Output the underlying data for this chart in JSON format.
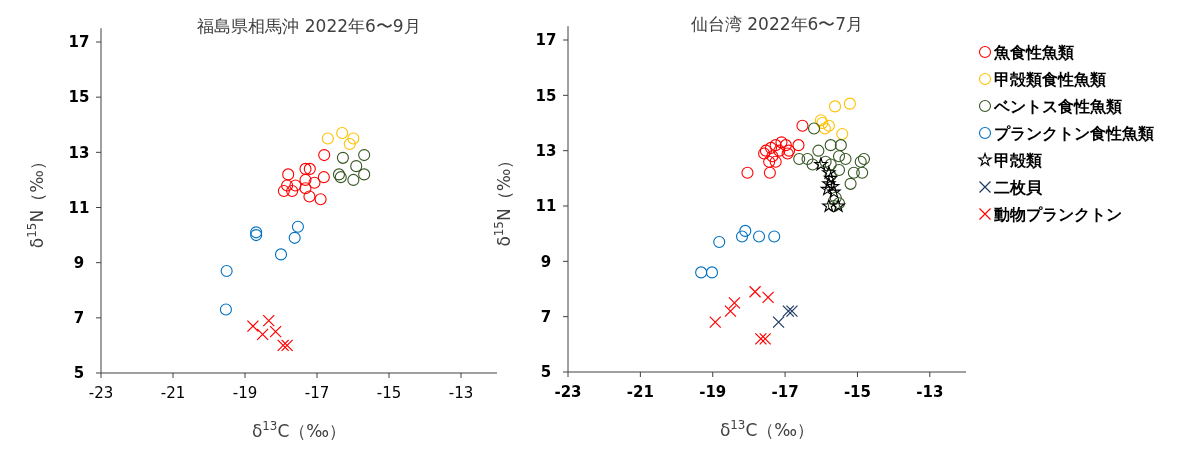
{
  "chart_data": [
    {
      "type": "scatter",
      "title": "福島県相馬沖 2022年6〜9月",
      "xlabel": "δ$^{13}$C（‰）",
      "ylabel": "δ$^{15}$N（‰）",
      "xlim": [
        -23,
        -12
      ],
      "xticks": [
        -23,
        -21,
        -19,
        -17,
        -15,
        -13
      ],
      "ylim": [
        5,
        17.5
      ],
      "yticks": [
        5,
        7,
        9,
        11,
        13,
        15,
        17
      ],
      "grid": false,
      "legend": false,
      "series": [
        {
          "color": "#ff0000",
          "marker": "circle",
          "x": [
            -16.8,
            -17.8,
            -17.32,
            -17.2,
            -17.83,
            -17.6,
            -17.32,
            -17.07,
            -16.81,
            -17.92,
            -17.69,
            -17.32,
            -17.21,
            -16.9
          ],
          "values": [
            12.9,
            12.2,
            12.4,
            12.4,
            11.8,
            11.8,
            12.0,
            11.9,
            12.1,
            11.6,
            11.6,
            11.7,
            11.4,
            11.3
          ]
        },
        {
          "color": "#ffc000",
          "marker": "circle",
          "x": [
            -16.7,
            -16.3,
            -15.99,
            -16.09
          ],
          "values": [
            13.5,
            13.7,
            13.5,
            13.3
          ]
        },
        {
          "color": "#375623",
          "marker": "circle",
          "x": [
            -15.69,
            -16.28,
            -15.91,
            -16.39,
            -16.34,
            -15.69,
            -15.99
          ],
          "values": [
            12.9,
            12.8,
            12.5,
            12.2,
            12.1,
            12.2,
            12.0
          ]
        },
        {
          "color": "#0070c0",
          "marker": "circle",
          "x": [
            -18.69,
            -18.69,
            -17.53,
            -17.62,
            -18.0,
            -19.51,
            -19.53
          ],
          "values": [
            10.1,
            10.0,
            10.3,
            9.9,
            9.3,
            8.7,
            7.3
          ]
        },
        {
          "color": "#ff0000",
          "marker": "cross",
          "x": [
            -18.78,
            -18.34,
            -18.51,
            -18.15,
            -17.94,
            -17.83
          ],
          "values": [
            6.7,
            6.9,
            6.4,
            6.5,
            6.0,
            6.0
          ]
        }
      ]
    },
    {
      "type": "scatter",
      "title": "仙台湾 2022年6〜7月",
      "xlabel": "δ$^{13}$C（‰）",
      "ylabel": "δ$^{15}$N（‰）",
      "xlim": [
        -23,
        -12
      ],
      "xticks": [
        -23,
        -21,
        -19,
        -17,
        -15,
        -13
      ],
      "ylim": [
        5,
        17.5
      ],
      "yticks": [
        5,
        7,
        9,
        11,
        13,
        15,
        17
      ],
      "grid": false,
      "legend": "right",
      "series": [
        {
          "name": "魚食性魚類",
          "color": "#ff0000",
          "marker": "circle",
          "x": [
            -16.52,
            -16.63,
            -18.04,
            -17.42,
            -17.1,
            -16.98,
            -17.53,
            -17.39,
            -17.26,
            -17.16,
            -16.93,
            -17.35,
            -17.44,
            -17.26,
            -17.58,
            -16.89
          ],
          "values": [
            13.9,
            13.2,
            12.2,
            12.2,
            13.3,
            13.2,
            13.0,
            13.1,
            13.2,
            13.0,
            12.9,
            12.8,
            12.6,
            12.6,
            12.9,
            13.0
          ]
        },
        {
          "name": "甲殻類食性魚類",
          "color": "#ffc000",
          "marker": "circle",
          "x": [
            -15.62,
            -15.21,
            -16.01,
            -15.97,
            -15.79,
            -15.9,
            -15.42
          ],
          "values": [
            14.6,
            14.7,
            14.1,
            14.0,
            13.9,
            13.8,
            13.6
          ]
        },
        {
          "name": "ベントス食性魚類",
          "color": "#375623",
          "marker": "circle",
          "x": [
            -16.2,
            -15.74,
            -15.46,
            -16.08,
            -15.51,
            -15.33,
            -14.82,
            -14.91,
            -16.61,
            -16.38,
            -16.24,
            -15.88,
            -15.74,
            -15.51,
            -15.1,
            -14.87,
            -15.19,
            -15.74,
            -15.6,
            -15.51,
            -15.65
          ],
          "values": [
            13.8,
            13.2,
            13.2,
            13.0,
            12.8,
            12.7,
            12.7,
            12.6,
            12.7,
            12.7,
            12.5,
            12.6,
            12.5,
            12.3,
            12.2,
            12.2,
            11.8,
            12.1,
            11.3,
            11.1,
            11.0
          ]
        },
        {
          "name": "プランクトン食性魚類",
          "color": "#0070c0",
          "marker": "circle",
          "x": [
            -19.32,
            -19.02,
            -18.82,
            -18.19,
            -18.1,
            -17.72,
            -17.3
          ],
          "values": [
            8.6,
            8.6,
            9.7,
            9.9,
            10.1,
            9.9,
            9.9
          ]
        },
        {
          "name": "甲殻類",
          "color": "#000000",
          "marker": "star",
          "x": [
            -16.01,
            -15.79,
            -15.74,
            -15.79,
            -15.69,
            -15.83,
            -15.65,
            -15.79,
            -15.53
          ],
          "values": [
            12.5,
            12.2,
            12.0,
            11.8,
            11.7,
            11.6,
            11.5,
            11.0,
            11.0
          ]
        },
        {
          "name": "二枚貝",
          "color": "#1f3864",
          "marker": "cross",
          "x": [
            -17.18,
            -16.91,
            -16.81
          ],
          "values": [
            6.8,
            7.2,
            7.2
          ]
        },
        {
          "name": "動物プランクトン",
          "color": "#ff0000",
          "marker": "cross",
          "x": [
            -18.93,
            -18.51,
            -18.4,
            -17.83,
            -17.47,
            -17.67,
            -17.55
          ],
          "values": [
            6.8,
            7.2,
            7.5,
            7.9,
            7.7,
            6.2,
            6.2
          ]
        }
      ]
    }
  ]
}
